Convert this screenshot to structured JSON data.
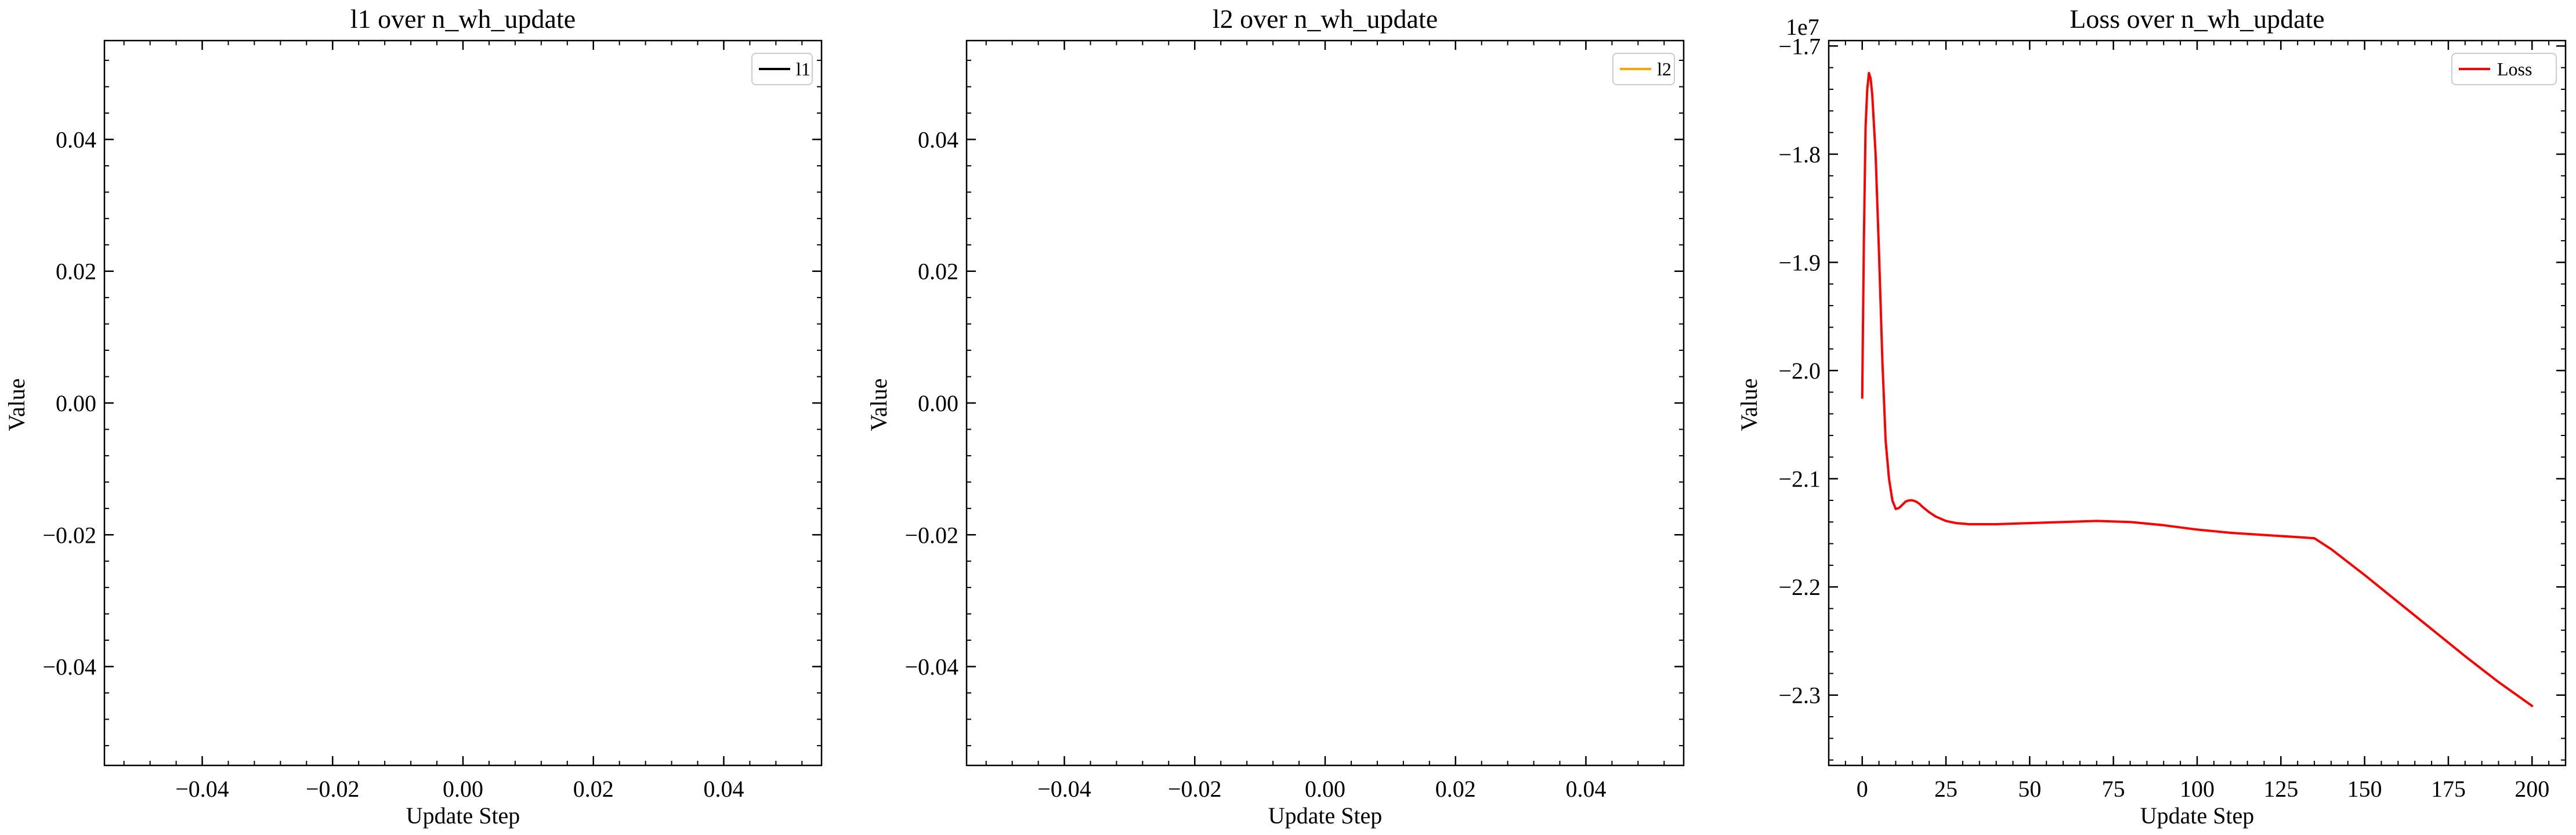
{
  "chart_data": [
    {
      "type": "line",
      "title": "l1 over n_wh_update",
      "xlabel": "Update Step",
      "ylabel": "Value",
      "xlim": [
        -0.055,
        0.055
      ],
      "ylim": [
        -0.055,
        0.055
      ],
      "xticks": [
        -0.04,
        -0.02,
        0.0,
        0.02,
        0.04
      ],
      "xtick_labels": [
        "−0.04",
        "−0.02",
        "0.00",
        "0.02",
        "0.04"
      ],
      "yticks": [
        -0.04,
        -0.02,
        0.0,
        0.02,
        0.04
      ],
      "ytick_labels": [
        "−0.04",
        "−0.02",
        "0.00",
        "0.02",
        "0.04"
      ],
      "legend": "top-right",
      "grid": false,
      "series": [
        {
          "name": "l1",
          "color": "#000000",
          "x": [],
          "y": []
        }
      ]
    },
    {
      "type": "line",
      "title": "l2 over n_wh_update",
      "xlabel": "Update Step",
      "ylabel": "Value",
      "xlim": [
        -0.055,
        0.055
      ],
      "ylim": [
        -0.055,
        0.055
      ],
      "xticks": [
        -0.04,
        -0.02,
        0.0,
        0.02,
        0.04
      ],
      "xtick_labels": [
        "−0.04",
        "−0.02",
        "0.00",
        "0.02",
        "0.04"
      ],
      "yticks": [
        -0.04,
        -0.02,
        0.0,
        0.02,
        0.04
      ],
      "ytick_labels": [
        "−0.04",
        "−0.02",
        "0.00",
        "0.02",
        "0.04"
      ],
      "legend": "top-right",
      "grid": false,
      "series": [
        {
          "name": "l2",
          "color": "#FFA500",
          "x": [],
          "y": []
        }
      ]
    },
    {
      "type": "line",
      "title": "Loss over n_wh_update",
      "xlabel": "Update Step",
      "ylabel": "Value",
      "offset_text": "1e7",
      "xlim": [
        -10,
        210
      ],
      "ylim": [
        -2.365,
        -1.695
      ],
      "xticks": [
        0,
        25,
        50,
        75,
        100,
        125,
        150,
        175,
        200
      ],
      "xtick_labels": [
        "0",
        "25",
        "50",
        "75",
        "100",
        "125",
        "150",
        "175",
        "200"
      ],
      "yticks": [
        -2.3,
        -2.2,
        -2.1,
        -2.0,
        -1.9,
        -1.8,
        -1.7
      ],
      "ytick_labels": [
        "−2.3",
        "−2.2",
        "−2.1",
        "−2.0",
        "−1.9",
        "−1.8",
        "−1.7"
      ],
      "legend": "top-right",
      "grid": false,
      "series": [
        {
          "name": "Loss",
          "color": "#FF0000",
          "x": [
            0,
            0.5,
            1,
            1.5,
            2,
            2.5,
            3,
            4,
            5,
            6,
            7,
            8,
            9,
            10,
            11,
            12,
            13,
            14,
            15,
            16,
            17,
            18,
            20,
            22,
            25,
            28,
            32,
            36,
            40,
            50,
            60,
            70,
            80,
            90,
            100,
            110,
            120,
            130,
            135,
            140,
            150,
            160,
            170,
            180,
            190,
            200
          ],
          "y": [
            -2.025,
            -1.88,
            -1.775,
            -1.74,
            -1.725,
            -1.73,
            -1.745,
            -1.8,
            -1.89,
            -1.99,
            -2.065,
            -2.1,
            -2.12,
            -2.128,
            -2.127,
            -2.124,
            -2.121,
            -2.12,
            -2.12,
            -2.121,
            -2.123,
            -2.126,
            -2.131,
            -2.135,
            -2.139,
            -2.141,
            -2.142,
            -2.142,
            -2.142,
            -2.141,
            -2.14,
            -2.139,
            -2.14,
            -2.143,
            -2.147,
            -2.15,
            -2.152,
            -2.154,
            -2.155,
            -2.165,
            -2.189,
            -2.214,
            -2.239,
            -2.264,
            -2.288,
            -2.31
          ]
        }
      ]
    }
  ]
}
